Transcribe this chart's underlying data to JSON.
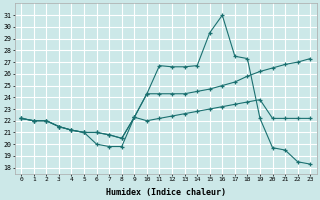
{
  "xlabel": "Humidex (Indice chaleur)",
  "bg_color": "#cce8e8",
  "grid_color": "#ffffff",
  "line_color": "#1a7070",
  "ylim": [
    17.5,
    32
  ],
  "xlim": [
    -0.5,
    23.5
  ],
  "yticks": [
    18,
    19,
    20,
    21,
    22,
    23,
    24,
    25,
    26,
    27,
    28,
    29,
    30,
    31
  ],
  "xticks": [
    0,
    1,
    2,
    3,
    4,
    5,
    6,
    7,
    8,
    9,
    10,
    11,
    12,
    13,
    14,
    15,
    16,
    17,
    18,
    19,
    20,
    21,
    22,
    23
  ],
  "line1_x": [
    0,
    1,
    2,
    3,
    4,
    5,
    6,
    7,
    8,
    9,
    10,
    11,
    12,
    13,
    14,
    15,
    16,
    17,
    18,
    19,
    20,
    21,
    22,
    23
  ],
  "line1_y": [
    22.2,
    22.0,
    22.0,
    21.5,
    21.2,
    21.0,
    20.0,
    19.8,
    19.8,
    22.3,
    24.3,
    26.7,
    26.6,
    26.6,
    26.7,
    29.5,
    31.0,
    27.5,
    27.3,
    22.2,
    19.7,
    19.5,
    18.5,
    18.3
  ],
  "line2_x": [
    0,
    1,
    2,
    3,
    4,
    5,
    6,
    7,
    8,
    9,
    10,
    11,
    12,
    13,
    14,
    15,
    16,
    17,
    18,
    19,
    20,
    21,
    22,
    23
  ],
  "line2_y": [
    22.2,
    22.0,
    22.0,
    21.5,
    21.2,
    21.0,
    21.0,
    20.8,
    20.5,
    22.3,
    24.3,
    24.3,
    24.3,
    24.3,
    24.5,
    24.7,
    25.0,
    25.3,
    25.8,
    26.2,
    26.5,
    26.8,
    27.0,
    27.3
  ],
  "line3_x": [
    0,
    1,
    2,
    3,
    4,
    5,
    6,
    7,
    8,
    9,
    10,
    11,
    12,
    13,
    14,
    15,
    16,
    17,
    18,
    19,
    20,
    21,
    22,
    23
  ],
  "line3_y": [
    22.2,
    22.0,
    22.0,
    21.5,
    21.2,
    21.0,
    21.0,
    20.8,
    20.5,
    22.3,
    22.0,
    22.2,
    22.4,
    22.6,
    22.8,
    23.0,
    23.2,
    23.4,
    23.6,
    23.8,
    22.2,
    22.2,
    22.2,
    22.2
  ]
}
